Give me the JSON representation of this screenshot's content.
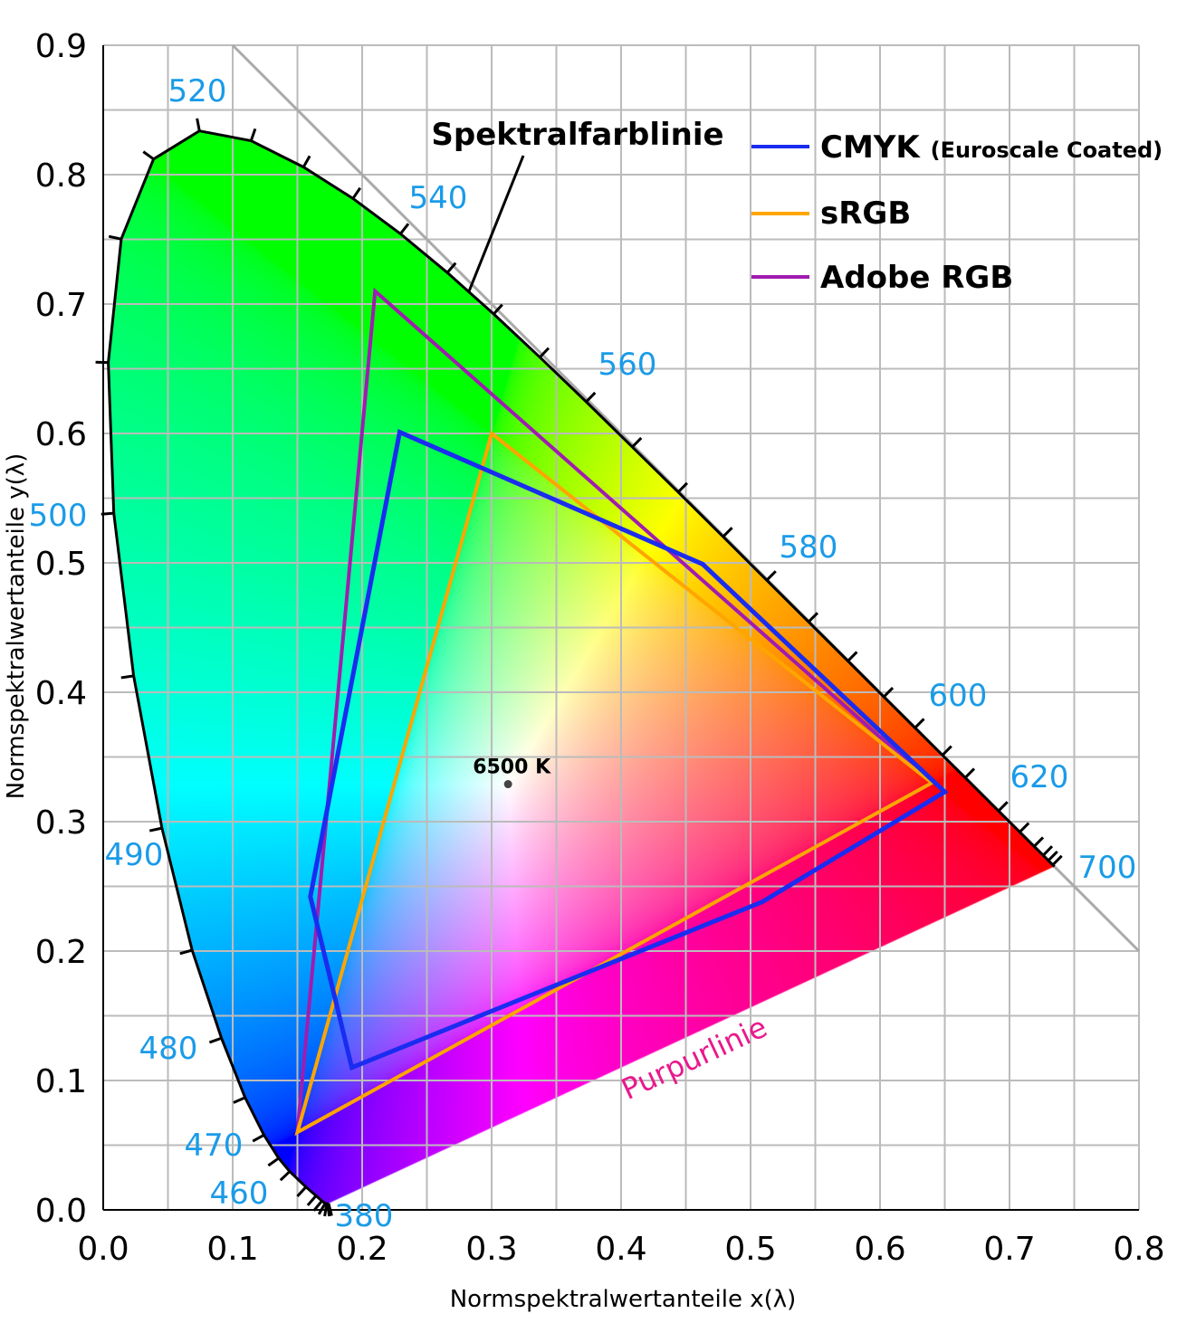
{
  "chart_data": {
    "type": "line",
    "title": "",
    "xlabel": "Normspektralwertanteile x(λ)",
    "ylabel": "Normspektralwertanteile y(λ)",
    "xlim": [
      0,
      0.8
    ],
    "ylim": [
      0,
      0.9
    ],
    "grid": true,
    "x_ticks": [
      "0.0",
      "0.1",
      "0.2",
      "0.3",
      "0.4",
      "0.5",
      "0.6",
      "0.7",
      "0.8"
    ],
    "y_ticks": [
      "0.0",
      "0.1",
      "0.2",
      "0.3",
      "0.4",
      "0.5",
      "0.6",
      "0.7",
      "0.8",
      "0.9"
    ],
    "spectral_locus": {
      "name": "Spektralfarblinie",
      "points": [
        [
          380,
          0.1741,
          0.005
        ],
        [
          400,
          0.1733,
          0.0048
        ],
        [
          410,
          0.1726,
          0.0048
        ],
        [
          420,
          0.1714,
          0.0051
        ],
        [
          430,
          0.1689,
          0.0069
        ],
        [
          440,
          0.1644,
          0.0109
        ],
        [
          450,
          0.1566,
          0.0177
        ],
        [
          460,
          0.144,
          0.0297
        ],
        [
          465,
          0.1355,
          0.0399
        ],
        [
          470,
          0.1241,
          0.0578
        ],
        [
          475,
          0.1096,
          0.0868
        ],
        [
          480,
          0.0913,
          0.1327
        ],
        [
          485,
          0.0687,
          0.2007
        ],
        [
          490,
          0.0454,
          0.295
        ],
        [
          495,
          0.0235,
          0.4127
        ],
        [
          500,
          0.0082,
          0.5384
        ],
        [
          505,
          0.0039,
          0.6548
        ],
        [
          510,
          0.0139,
          0.7502
        ],
        [
          515,
          0.0389,
          0.812
        ],
        [
          520,
          0.0743,
          0.8338
        ],
        [
          525,
          0.1142,
          0.8262
        ],
        [
          530,
          0.1547,
          0.8059
        ],
        [
          535,
          0.1929,
          0.7816
        ],
        [
          540,
          0.2296,
          0.7543
        ],
        [
          545,
          0.2658,
          0.7243
        ],
        [
          550,
          0.3016,
          0.6923
        ],
        [
          555,
          0.3373,
          0.6589
        ],
        [
          560,
          0.3731,
          0.6245
        ],
        [
          565,
          0.4087,
          0.5896
        ],
        [
          570,
          0.4441,
          0.5547
        ],
        [
          575,
          0.4788,
          0.5202
        ],
        [
          580,
          0.5125,
          0.4866
        ],
        [
          585,
          0.5448,
          0.4544
        ],
        [
          590,
          0.5752,
          0.4242
        ],
        [
          595,
          0.6029,
          0.3965
        ],
        [
          600,
          0.627,
          0.3725
        ],
        [
          605,
          0.6482,
          0.3514
        ],
        [
          610,
          0.6658,
          0.334
        ],
        [
          620,
          0.6915,
          0.3083
        ],
        [
          630,
          0.7079,
          0.292
        ],
        [
          640,
          0.719,
          0.2809
        ],
        [
          650,
          0.726,
          0.274
        ],
        [
          660,
          0.73,
          0.27
        ],
        [
          680,
          0.7334,
          0.2666
        ],
        [
          700,
          0.7347,
          0.2653
        ]
      ],
      "labels": [
        "520",
        "540",
        "560",
        "580",
        "600",
        "620",
        "700",
        "500",
        "490",
        "480",
        "470",
        "460",
        "380"
      ]
    },
    "purple_line_label": "Purpurlinie",
    "series": [
      {
        "name": "CMYK",
        "subname": "(Euroscale Coated)",
        "color": "#1a2cf0",
        "points": [
          [
            0.229,
            0.601
          ],
          [
            0.463,
            0.499
          ],
          [
            0.65,
            0.323
          ],
          [
            0.509,
            0.238
          ],
          [
            0.192,
            0.11
          ],
          [
            0.16,
            0.242
          ]
        ]
      },
      {
        "name": "sRGB",
        "color": "#ffa500",
        "points": [
          [
            0.64,
            0.33
          ],
          [
            0.3,
            0.6
          ],
          [
            0.15,
            0.06
          ]
        ]
      },
      {
        "name": "Adobe RGB",
        "color": "#a01cb0",
        "points": [
          [
            0.64,
            0.33
          ],
          [
            0.21,
            0.71
          ],
          [
            0.15,
            0.06
          ]
        ]
      }
    ],
    "white_point": {
      "label": "6500 K",
      "x": 0.3127,
      "y": 0.329
    },
    "legend_placement": "top-right"
  }
}
